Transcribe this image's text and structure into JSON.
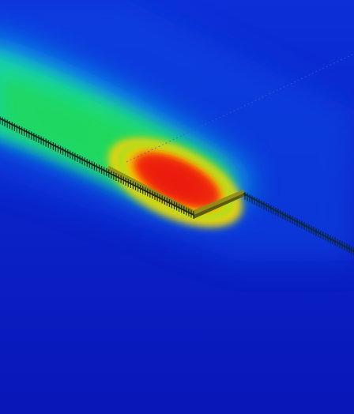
{
  "scene": {
    "kind": "thermal-simulation-render",
    "colormap": [
      "#0a1fc4",
      "#0b3fe0",
      "#0aa6e8",
      "#12d38a",
      "#2ee04a",
      "#b6e014",
      "#f2c40a",
      "#ff6a00",
      "#e81a0a"
    ],
    "background_color": "#0a1fc4",
    "trace_color": "#2a3a2a"
  }
}
